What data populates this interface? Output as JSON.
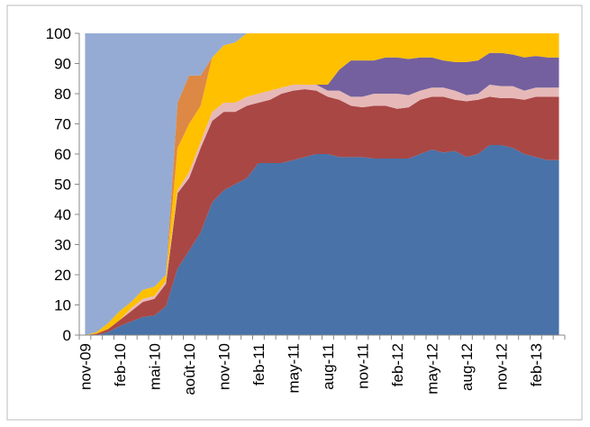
{
  "chart_data": {
    "type": "stacked_area",
    "categories": [
      "nov-09",
      null,
      null,
      "feb-10",
      null,
      null,
      "mai-10",
      null,
      null,
      "août-10",
      null,
      null,
      "nov-10",
      null,
      null,
      "feb-11",
      null,
      null,
      "may-11",
      null,
      null,
      "aug-11",
      null,
      null,
      "nov-11",
      null,
      null,
      "feb-12",
      null,
      null,
      "may-12",
      null,
      null,
      "aug-12",
      null,
      null,
      "nov-12",
      null,
      null,
      "feb-13",
      null,
      null
    ],
    "series": [
      {
        "color": "#4872a8",
        "values": [
          0,
          0,
          1,
          3,
          4.5,
          6,
          6.5,
          9.5,
          22,
          28,
          34,
          44,
          48,
          50,
          52,
          57,
          57,
          57,
          58,
          59,
          60,
          60,
          59,
          59,
          59,
          58.5,
          58.5,
          58.5,
          58.5,
          60,
          61.5,
          60.5,
          61,
          59,
          60,
          63,
          63,
          62,
          60,
          59,
          58,
          58
        ]
      },
      {
        "color": "#a94745",
        "values": [
          0,
          0.5,
          1,
          2,
          3.5,
          5,
          5.5,
          7.5,
          25,
          24,
          28,
          27,
          26,
          24,
          24,
          20,
          21,
          23,
          23,
          22.5,
          21,
          19,
          19,
          17,
          16.5,
          17.5,
          17.5,
          16.5,
          17,
          18,
          17.5,
          18.5,
          17,
          18.5,
          18,
          16,
          15.5,
          16.5,
          18,
          20,
          21,
          21
        ]
      },
      {
        "color": "#e6b9b8",
        "values": [
          0,
          0,
          0,
          0,
          1,
          1,
          1,
          1,
          1,
          2,
          2,
          3,
          3,
          3,
          3,
          3,
          3,
          2,
          2,
          1.5,
          2,
          2,
          3,
          3,
          3.5,
          4,
          4,
          5,
          4,
          3,
          3,
          3,
          3,
          2,
          2,
          4,
          4,
          4,
          3,
          3,
          3,
          3
        ]
      },
      {
        "color": "#74609e",
        "values": [
          0,
          0,
          0,
          0,
          0,
          0,
          0,
          0,
          0,
          0,
          0,
          0,
          0,
          0,
          0,
          0,
          0,
          0,
          0,
          0,
          0,
          2,
          7,
          12,
          12,
          11,
          12,
          12,
          12,
          11,
          10,
          9,
          9.5,
          11,
          11,
          10.5,
          11,
          10.5,
          11,
          10.5,
          10,
          10
        ]
      },
      {
        "color": "#ffc000",
        "values": [
          0,
          0.5,
          2,
          3,
          2,
          3,
          3,
          2,
          14,
          16,
          12,
          18,
          19,
          20,
          21,
          20,
          19,
          18,
          17,
          17,
          17,
          17,
          12,
          9,
          9,
          9,
          8,
          8,
          8.5,
          8,
          8,
          9,
          9.5,
          9.5,
          9,
          6.5,
          6.5,
          7,
          8,
          7.5,
          8,
          8
        ]
      },
      {
        "color": "#dd8844",
        "values": [
          0,
          0,
          0,
          0,
          0,
          0,
          0,
          0,
          15,
          16,
          10,
          0,
          0,
          0,
          0,
          0,
          0,
          0,
          0,
          0,
          0,
          0,
          0,
          0,
          0,
          0,
          0,
          0,
          0,
          0,
          0,
          0,
          0,
          0,
          0,
          0,
          0,
          0,
          0,
          0,
          0,
          0
        ]
      },
      {
        "color": "#95abd3",
        "values": [
          100,
          99,
          96,
          92,
          89,
          85,
          84,
          80,
          23,
          14,
          14,
          8,
          4,
          3,
          0,
          0,
          0,
          0,
          0,
          0,
          0,
          0,
          0,
          0,
          0,
          0,
          0,
          0,
          0,
          0,
          0,
          0,
          0,
          0,
          0,
          0,
          0,
          0,
          0,
          0,
          0,
          0
        ]
      }
    ],
    "ylim": [
      0,
      100
    ],
    "yticks": [
      0,
      10,
      20,
      30,
      40,
      50,
      60,
      70,
      80,
      90,
      100
    ],
    "grid": false
  }
}
